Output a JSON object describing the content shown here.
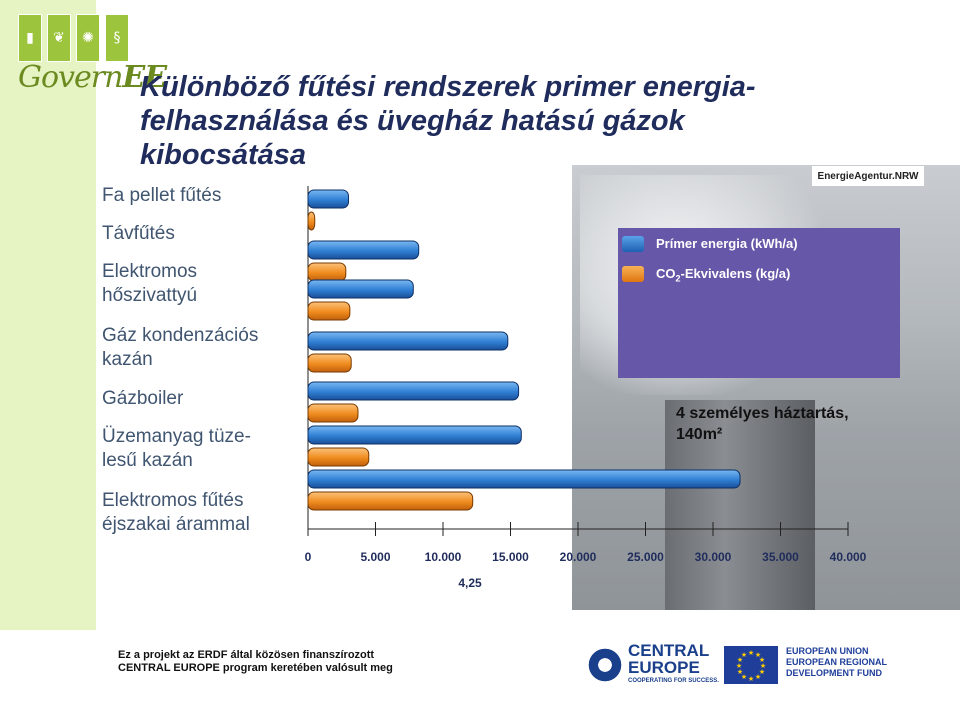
{
  "logo": {
    "brand": "Govern",
    "brand_suffix": "EE",
    "icons": [
      "building-icon",
      "leaf-icon",
      "sun-icon",
      "paragraph-icon"
    ]
  },
  "title": "Különböző fűtési rendszerek primer energia-felhasználása és üvegház hatású gázok kibocsátása",
  "categories": [
    "Fa pellet fűtés",
    "Távfűtés",
    "Elektromos hőszivattyú",
    "Gáz kondenzációs kazán",
    "Gázboiler",
    "Üzemanyag tüze-lesű kazán",
    "Elektromos fűtés éjszakai árammal"
  ],
  "legend": {
    "primary": "Prímer  energia (kWh/a)",
    "co2_prefix": "CO",
    "co2_sub": "2",
    "co2_suffix": "-Ekvivalens (kg/a)"
  },
  "source_logo": "EnergieAgentur.NRW",
  "household": {
    "line1": "4 személyes háztartás,",
    "line2": "140m²"
  },
  "chart_data": {
    "type": "bar",
    "orientation": "horizontal",
    "categories": [
      "Fa pellet fűtés",
      "Távfűtés",
      "Elektromos hőszivattyú",
      "Gáz kondenzációs kazán",
      "Gázboiler",
      "Üzemanyag tüze-lesű kazán",
      "Elektromos fűtés éjszakai árammal"
    ],
    "series": [
      {
        "name": "Prímer  energia (kWh/a)",
        "color": "#2f7fd3",
        "values": [
          3000,
          8200,
          7800,
          14800,
          15600,
          15800,
          32000
        ]
      },
      {
        "name": "CO2-Ekvivalens (kg/a)",
        "color": "#f08c1e",
        "values": [
          500,
          2800,
          3100,
          3200,
          3700,
          4500,
          12200
        ]
      }
    ],
    "xlim": [
      0,
      40000
    ],
    "x_ticks": [
      "0",
      "5.000",
      "10.000",
      "15.000",
      "20.000",
      "25.000",
      "30.000",
      "35.000",
      "40.000"
    ],
    "x_annotation": "4,25",
    "legend_position": "top-right"
  },
  "footer": {
    "line1": "Ez a projekt az ERDF által közösen finanszírozott",
    "line2": "CENTRAL EUROPE  program keretében valósult meg",
    "ce_name_1": "CENTRAL",
    "ce_name_2": "EUROPE",
    "ce_slogan": "COOPERATING FOR SUCCESS.",
    "eu_line1": "EUROPEAN UNION",
    "eu_line2": "EUROPEAN REGIONAL",
    "eu_line3": "DEVELOPMENT FUND"
  },
  "colors": {
    "title": "#1f2c5c",
    "legend_bg": "#6757a8",
    "bar_blue": "#2f7fd3",
    "bar_orange": "#f08c1e",
    "strip_green": "#e6f3c2"
  }
}
